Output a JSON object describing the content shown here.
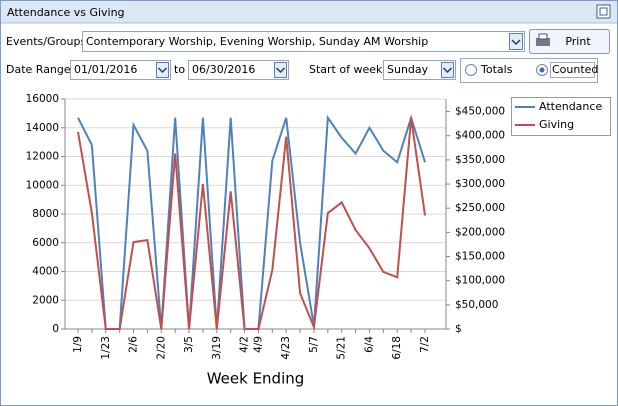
{
  "window": {
    "title": "Attendance vs Giving"
  },
  "filters": {
    "events_label": "Events/Groups",
    "events_value": "Contemporary Worship, Evening Worship, Sunday AM Worship",
    "print": "Print",
    "date_range_label": "Date Range",
    "start_date": "01/01/2016",
    "to": "to",
    "end_date": "06/30/2016",
    "start_of_week_label": "Start of week",
    "start_of_week": "Sunday",
    "totals": "Totals",
    "counted": "Counted"
  },
  "chart_data": {
    "type": "line",
    "x_title": "Week Ending",
    "categories": [
      "1/9",
      null,
      "1/23",
      null,
      "2/6",
      null,
      "2/20",
      null,
      "3/5",
      null,
      "3/19",
      null,
      "4/2",
      "4/9",
      null,
      "4/23",
      null,
      "5/7",
      null,
      "5/21",
      null,
      "6/4",
      null,
      "6/18",
      null,
      "7/2"
    ],
    "series": [
      {
        "name": "Attendance",
        "color": "#4f81bd",
        "values": [
          14700,
          12800,
          0,
          0,
          14200,
          12400,
          0,
          14700,
          0,
          14700,
          0,
          14700,
          0,
          0,
          11700,
          14700,
          6000,
          200,
          14700,
          13300,
          12200,
          14000,
          12400,
          11600,
          14700,
          11600
        ]
      },
      {
        "name": "Giving",
        "color": "#c0504d",
        "axis": "y2",
        "values": [
          408000,
          240000,
          0,
          0,
          180000,
          184000,
          0,
          363000,
          0,
          300000,
          0,
          285000,
          0,
          0,
          122000,
          398000,
          74000,
          4000,
          240000,
          262000,
          205000,
          167000,
          118000,
          107000,
          437000,
          235000
        ]
      }
    ],
    "ylim": [
      0,
      16000
    ],
    "yticks": [
      0,
      2000,
      4000,
      6000,
      8000,
      10000,
      12000,
      14000,
      16000
    ],
    "y2lim": [
      0,
      476000
    ],
    "y2ticks": [
      {
        "value": 0,
        "label": "$"
      },
      {
        "value": 50000,
        "label": "$50,000"
      },
      {
        "value": 100000,
        "label": "$100,000"
      },
      {
        "value": 150000,
        "label": "$150,000"
      },
      {
        "value": 200000,
        "label": "$200,000"
      },
      {
        "value": 250000,
        "label": "$250,000"
      },
      {
        "value": 300000,
        "label": "$300,000"
      },
      {
        "value": 350000,
        "label": "$350,000"
      },
      {
        "value": 400000,
        "label": "$400,000"
      },
      {
        "value": 450000,
        "label": "$450,000"
      }
    ],
    "grid": true,
    "legend": "top-right"
  }
}
